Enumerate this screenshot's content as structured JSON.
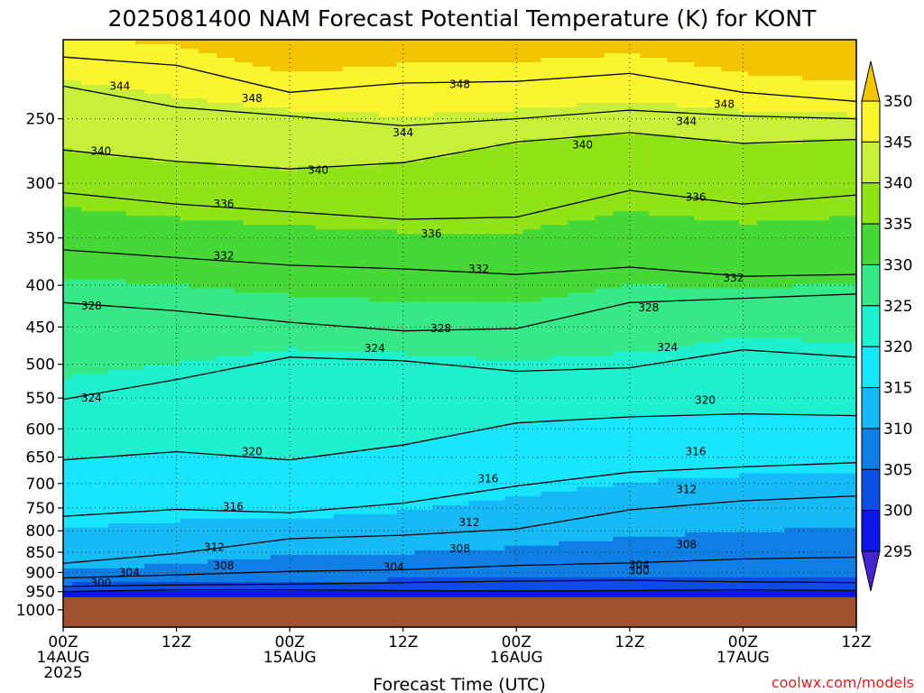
{
  "chart_data": {
    "type": "heatmap",
    "title": "2025081400 NAM Forecast Potential Temperature (K) for KONT",
    "xlabel": "Forecast Time (UTC)",
    "ylabel": "",
    "credit": "coolwx.com/models",
    "y_axis": {
      "scale": "pressure (hPa)",
      "ylim": [
        1050,
        200
      ],
      "ticks": [
        "250",
        "300",
        "350",
        "400",
        "450",
        "500",
        "550",
        "600",
        "650",
        "700",
        "750",
        "800",
        "850",
        "900",
        "950",
        "1000"
      ]
    },
    "x_axis": {
      "xlim": [
        0,
        84
      ],
      "unit": "forecast hour",
      "ticks": [
        {
          "hour": 0,
          "line1": "00Z",
          "line2": "14AUG",
          "line3": "2025"
        },
        {
          "hour": 12,
          "line1": "12Z",
          "line2": "",
          "line3": ""
        },
        {
          "hour": 24,
          "line1": "00Z",
          "line2": "15AUG",
          "line3": ""
        },
        {
          "hour": 36,
          "line1": "12Z",
          "line2": "",
          "line3": ""
        },
        {
          "hour": 48,
          "line1": "00Z",
          "line2": "16AUG",
          "line3": ""
        },
        {
          "hour": 60,
          "line1": "12Z",
          "line2": "",
          "line3": ""
        },
        {
          "hour": 72,
          "line1": "00Z",
          "line2": "17AUG",
          "line3": ""
        },
        {
          "hour": 84,
          "line1": "12Z",
          "line2": "",
          "line3": ""
        }
      ]
    },
    "grid": true,
    "ground_level_hPa": 965,
    "colorbar": {
      "labels": [
        "350",
        "345",
        "340",
        "335",
        "330",
        "325",
        "320",
        "315",
        "310",
        "305",
        "300",
        "295"
      ],
      "bins": [
        {
          "min": 350,
          "max": 999,
          "color": "#f4c400"
        },
        {
          "min": 345,
          "max": 350,
          "color": "#fbf530"
        },
        {
          "min": 340,
          "max": 345,
          "color": "#c8f03a"
        },
        {
          "min": 335,
          "max": 340,
          "color": "#90e316"
        },
        {
          "min": 330,
          "max": 335,
          "color": "#46d837"
        },
        {
          "min": 325,
          "max": 330,
          "color": "#34e986"
        },
        {
          "min": 320,
          "max": 325,
          "color": "#1ff0cf"
        },
        {
          "min": 315,
          "max": 320,
          "color": "#18e6ff"
        },
        {
          "min": 310,
          "max": 315,
          "color": "#15baf6"
        },
        {
          "min": 305,
          "max": 310,
          "color": "#0f7fe6"
        },
        {
          "min": 300,
          "max": 305,
          "color": "#0c4ee4"
        },
        {
          "min": 295,
          "max": 300,
          "color": "#0b16e6"
        },
        {
          "min": 0,
          "max": 295,
          "color": "#4623d0"
        }
      ],
      "ground_color": "#a0522d"
    },
    "contour_interval_K": 4,
    "series": [
      {
        "theta": 300,
        "points": [
          [
            0,
            950
          ],
          [
            12,
            945
          ],
          [
            24,
            945
          ],
          [
            36,
            947
          ],
          [
            48,
            948
          ],
          [
            60,
            947
          ],
          [
            72,
            945
          ],
          [
            84,
            947
          ]
        ]
      },
      {
        "theta": 304,
        "points": [
          [
            0,
            936
          ],
          [
            12,
            932
          ],
          [
            24,
            930
          ],
          [
            36,
            926
          ],
          [
            48,
            922
          ],
          [
            60,
            920
          ],
          [
            72,
            924
          ],
          [
            84,
            926
          ]
        ]
      },
      {
        "theta": 308,
        "points": [
          [
            0,
            914
          ],
          [
            12,
            906
          ],
          [
            24,
            897
          ],
          [
            36,
            893
          ],
          [
            48,
            882
          ],
          [
            60,
            876
          ],
          [
            72,
            866
          ],
          [
            84,
            862
          ]
        ]
      },
      {
        "theta": 312,
        "points": [
          [
            0,
            877
          ],
          [
            12,
            853
          ],
          [
            24,
            818
          ],
          [
            36,
            810
          ],
          [
            48,
            796
          ],
          [
            60,
            754
          ],
          [
            72,
            735
          ],
          [
            84,
            725
          ]
        ]
      },
      {
        "theta": 316,
        "points": [
          [
            0,
            768
          ],
          [
            12,
            753
          ],
          [
            24,
            760
          ],
          [
            36,
            740
          ],
          [
            48,
            705
          ],
          [
            60,
            678
          ],
          [
            72,
            668
          ],
          [
            84,
            660
          ]
        ]
      },
      {
        "theta": 320,
        "points": [
          [
            0,
            655
          ],
          [
            12,
            640
          ],
          [
            24,
            655
          ],
          [
            36,
            628
          ],
          [
            48,
            590
          ],
          [
            60,
            580
          ],
          [
            72,
            575
          ],
          [
            84,
            578
          ]
        ]
      },
      {
        "theta": 324,
        "points": [
          [
            0,
            552
          ],
          [
            12,
            522
          ],
          [
            24,
            490
          ],
          [
            36,
            495
          ],
          [
            48,
            510
          ],
          [
            60,
            505
          ],
          [
            72,
            480
          ],
          [
            84,
            490
          ]
        ]
      },
      {
        "theta": 328,
        "points": [
          [
            0,
            420
          ],
          [
            12,
            430
          ],
          [
            24,
            444
          ],
          [
            36,
            455
          ],
          [
            48,
            452
          ],
          [
            60,
            420
          ],
          [
            72,
            415
          ],
          [
            84,
            410
          ]
        ]
      },
      {
        "theta": 332,
        "points": [
          [
            0,
            362
          ],
          [
            12,
            370
          ],
          [
            24,
            378
          ],
          [
            36,
            382
          ],
          [
            48,
            388
          ],
          [
            60,
            380
          ],
          [
            72,
            390
          ],
          [
            84,
            388
          ]
        ]
      },
      {
        "theta": 336,
        "points": [
          [
            0,
            308
          ],
          [
            12,
            318
          ],
          [
            24,
            325
          ],
          [
            36,
            332
          ],
          [
            48,
            330
          ],
          [
            60,
            306
          ],
          [
            72,
            318
          ],
          [
            84,
            310
          ]
        ]
      },
      {
        "theta": 340,
        "points": [
          [
            0,
            273
          ],
          [
            12,
            282
          ],
          [
            24,
            288
          ],
          [
            36,
            283
          ],
          [
            48,
            267
          ],
          [
            60,
            260
          ],
          [
            72,
            268
          ],
          [
            84,
            265
          ]
        ]
      },
      {
        "theta": 344,
        "points": [
          [
            0,
            228
          ],
          [
            12,
            242
          ],
          [
            24,
            248
          ],
          [
            36,
            255
          ],
          [
            48,
            250
          ],
          [
            60,
            244
          ],
          [
            72,
            248
          ],
          [
            84,
            250
          ]
        ]
      },
      {
        "theta": 348,
        "points": [
          [
            0,
            210
          ],
          [
            12,
            215
          ],
          [
            24,
            232
          ],
          [
            36,
            226
          ],
          [
            48,
            225
          ],
          [
            60,
            220
          ],
          [
            72,
            232
          ],
          [
            84,
            238
          ]
        ]
      }
    ],
    "contour_labels": [
      {
        "text": "344",
        "hour": 6,
        "p": 228
      },
      {
        "text": "348",
        "hour": 20,
        "p": 236
      },
      {
        "text": "348",
        "hour": 42,
        "p": 227
      },
      {
        "text": "348",
        "hour": 70,
        "p": 240
      },
      {
        "text": "344",
        "hour": 36,
        "p": 260
      },
      {
        "text": "344",
        "hour": 66,
        "p": 252
      },
      {
        "text": "340",
        "hour": 4,
        "p": 274
      },
      {
        "text": "340",
        "hour": 27,
        "p": 289
      },
      {
        "text": "340",
        "hour": 55,
        "p": 269
      },
      {
        "text": "336",
        "hour": 17,
        "p": 318
      },
      {
        "text": "336",
        "hour": 39,
        "p": 346
      },
      {
        "text": "336",
        "hour": 67,
        "p": 312
      },
      {
        "text": "332",
        "hour": 17,
        "p": 368
      },
      {
        "text": "332",
        "hour": 44,
        "p": 382
      },
      {
        "text": "332",
        "hour": 71,
        "p": 392
      },
      {
        "text": "328",
        "hour": 3,
        "p": 424
      },
      {
        "text": "328",
        "hour": 40,
        "p": 452
      },
      {
        "text": "328",
        "hour": 62,
        "p": 426
      },
      {
        "text": "324",
        "hour": 33,
        "p": 478
      },
      {
        "text": "324",
        "hour": 64,
        "p": 477
      },
      {
        "text": "324",
        "hour": 3,
        "p": 550
      },
      {
        "text": "320",
        "hour": 20,
        "p": 640
      },
      {
        "text": "320",
        "hour": 68,
        "p": 553
      },
      {
        "text": "316",
        "hour": 18,
        "p": 747
      },
      {
        "text": "316",
        "hour": 45,
        "p": 691
      },
      {
        "text": "316",
        "hour": 67,
        "p": 640
      },
      {
        "text": "312",
        "hour": 16,
        "p": 838
      },
      {
        "text": "312",
        "hour": 43,
        "p": 781
      },
      {
        "text": "312",
        "hour": 66,
        "p": 712
      },
      {
        "text": "308",
        "hour": 17,
        "p": 883
      },
      {
        "text": "308",
        "hour": 42,
        "p": 841
      },
      {
        "text": "308",
        "hour": 66,
        "p": 832
      },
      {
        "text": "304",
        "hour": 7,
        "p": 900
      },
      {
        "text": "304",
        "hour": 35,
        "p": 886
      },
      {
        "text": "304",
        "hour": 61,
        "p": 881
      },
      {
        "text": "300",
        "hour": 4,
        "p": 927
      },
      {
        "text": "300",
        "hour": 61,
        "p": 896
      }
    ]
  }
}
